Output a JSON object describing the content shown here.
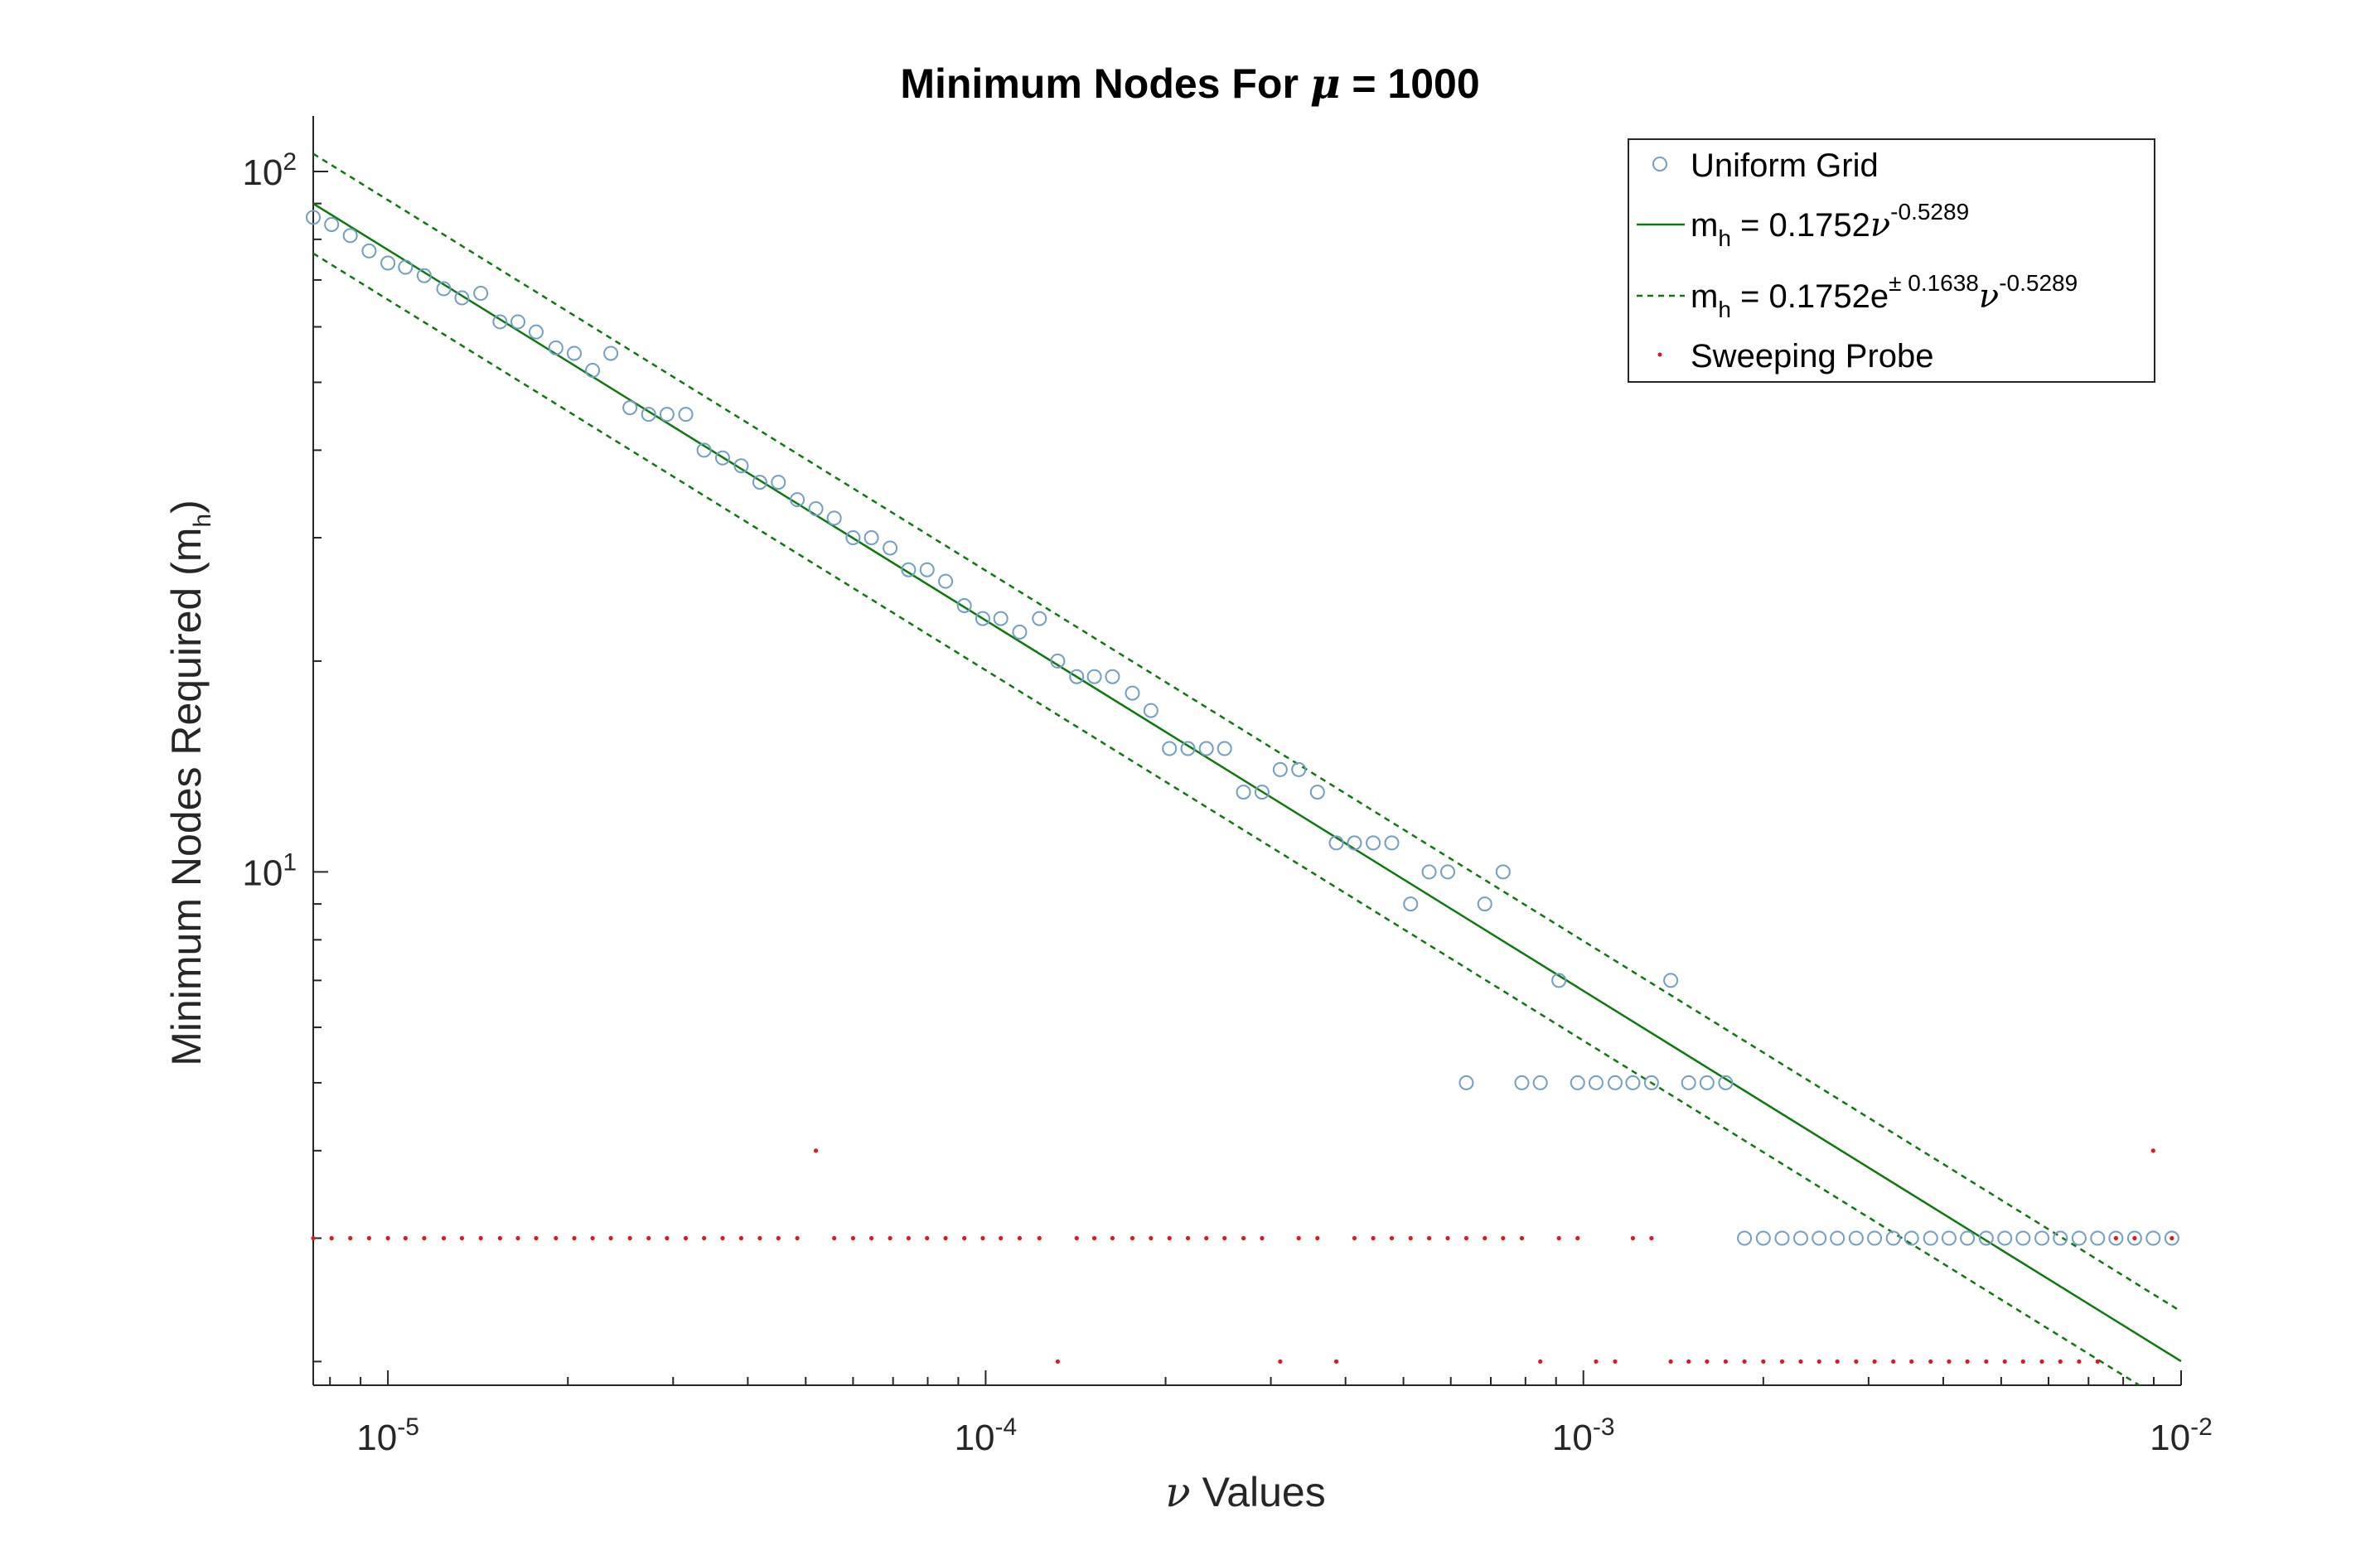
{
  "chart_data": {
    "type": "scatter",
    "title": {
      "prefix": "Minimum Nodes For ",
      "symbol": "μ",
      "suffix": " = 1000"
    },
    "xlabel": {
      "symbol": "ν",
      "text": " Values"
    },
    "ylabel": {
      "text": "Minimum Nodes Required (m",
      "sub": "h",
      "close": ")"
    },
    "x_scale": "log",
    "y_scale": "log",
    "xlim": [
      7.5e-06,
      0.01
    ],
    "ylim": [
      1.85,
      120
    ],
    "grid": false,
    "x_ticks": [
      {
        "value": 1e-05,
        "base": "10",
        "exp": "-5"
      },
      {
        "value": 0.0001,
        "base": "10",
        "exp": "-4"
      },
      {
        "value": 0.001,
        "base": "10",
        "exp": "-3"
      },
      {
        "value": 0.01,
        "base": "10",
        "exp": "-2"
      }
    ],
    "y_ticks": [
      {
        "value": 10,
        "base": "10",
        "exp": "1"
      },
      {
        "value": 100,
        "base": "10",
        "exp": "2"
      }
    ],
    "legend": {
      "position": "top-right",
      "entries": [
        {
          "text": "Uniform Grid"
        },
        {
          "pre": "m",
          "sub": "h",
          "mid": " = 0.1752",
          "sym": "ν",
          "sup": "-0.5289"
        },
        {
          "pre": "m",
          "sub": "h",
          "mid": " = 0.1752e",
          "sup1": "± 0.1638",
          "sym": "ν",
          "sup": "-0.5289"
        },
        {
          "text": "Sweeping Probe"
        }
      ]
    },
    "colors": {
      "uniform_grid": "#6f9fc5",
      "fit_line": "#0b7a0b",
      "band": "#0b7a0b",
      "sweeping_probe": "#e8141b",
      "axis": "#262626"
    },
    "fit": {
      "coefficient": 0.1752,
      "exponent": -0.5289,
      "band_log_offset": 0.1638
    },
    "series": [
      {
        "name": "Uniform Grid",
        "kind": "circle",
        "x": [
          7.5e-06,
          8.05e-06,
          8.65e-06,
          9.3e-06,
          1e-05,
          1.07e-05,
          1.15e-05,
          1.24e-05,
          1.33e-05,
          1.43e-05,
          1.54e-05,
          1.65e-05,
          1.77e-05,
          1.91e-05,
          2.05e-05,
          2.2e-05,
          2.36e-05,
          2.54e-05,
          2.73e-05,
          2.93e-05,
          3.15e-05,
          3.38e-05,
          3.63e-05,
          3.9e-05,
          4.19e-05,
          4.5e-05,
          4.84e-05,
          5.2e-05,
          5.58e-05,
          6e-05,
          6.44e-05,
          6.92e-05,
          7.43e-05,
          7.98e-05,
          8.57e-05,
          9.21e-05,
          9.89e-05,
          0.000106,
          0.000114,
          0.000123,
          0.000132,
          0.000142,
          0.000152,
          0.000163,
          0.000176,
          0.000189,
          0.000203,
          0.000218,
          0.000234,
          0.000251,
          0.00027,
          0.00029,
          0.000311,
          0.000334,
          0.000359,
          0.000386,
          0.000414,
          0.000445,
          0.000478,
          0.000514,
          0.000552,
          0.000593,
          0.000637,
          0.000684,
          0.000734,
          0.000789,
          0.000847,
          0.00091,
          0.000978,
          0.00105,
          0.00113,
          0.00121,
          0.0013,
          0.0014,
          0.0015,
          0.00161,
          0.00173,
          0.00186,
          0.002,
          0.00215,
          0.00231,
          0.00248,
          0.00266,
          0.00286,
          0.00307,
          0.0033,
          0.00354,
          0.00381,
          0.00409,
          0.00439,
          0.00472,
          0.00507,
          0.00544,
          0.00585,
          0.00628,
          0.00675,
          0.00725,
          0.00778,
          0.00836,
          0.00898,
          0.00965
        ],
        "y": [
          86,
          84,
          81,
          77,
          74,
          73,
          71,
          68,
          66,
          67,
          61,
          61,
          59,
          56,
          55,
          52,
          55,
          46,
          45,
          45,
          45,
          40,
          39,
          38,
          36,
          36,
          34,
          33,
          32,
          30,
          30,
          29,
          27,
          27,
          26,
          24,
          23,
          23,
          22,
          23,
          20,
          19,
          19,
          19,
          18,
          17,
          15,
          15,
          15,
          15,
          13,
          13,
          14,
          14,
          13,
          11,
          11,
          11,
          11,
          9,
          10,
          10,
          5,
          9,
          10,
          5,
          5,
          7,
          5,
          5,
          5,
          5,
          5,
          7,
          5,
          5,
          5,
          3,
          3,
          3,
          3,
          3,
          3,
          3,
          3,
          3,
          3,
          3,
          3,
          3,
          3,
          3,
          3,
          3,
          3,
          3,
          3,
          3,
          3,
          3,
          3
        ]
      },
      {
        "name": "Sweeping Probe",
        "kind": "dot",
        "x": [
          7.5e-06,
          8.05e-06,
          8.65e-06,
          9.3e-06,
          1e-05,
          1.07e-05,
          1.15e-05,
          1.24e-05,
          1.33e-05,
          1.43e-05,
          1.54e-05,
          1.65e-05,
          1.77e-05,
          1.91e-05,
          2.05e-05,
          2.2e-05,
          2.36e-05,
          2.54e-05,
          2.73e-05,
          2.93e-05,
          3.15e-05,
          3.38e-05,
          3.63e-05,
          3.9e-05,
          4.19e-05,
          4.5e-05,
          4.84e-05,
          5.2e-05,
          5.58e-05,
          6e-05,
          6.44e-05,
          6.92e-05,
          7.43e-05,
          7.98e-05,
          8.57e-05,
          9.21e-05,
          9.89e-05,
          0.000106,
          0.000114,
          0.000123,
          0.000132,
          0.000142,
          0.000152,
          0.000163,
          0.000176,
          0.000189,
          0.000203,
          0.000218,
          0.000234,
          0.000251,
          0.00027,
          0.00029,
          0.000311,
          0.000334,
          0.000359,
          0.000386,
          0.000414,
          0.000445,
          0.000478,
          0.000514,
          0.000552,
          0.000593,
          0.000637,
          0.000684,
          0.000734,
          0.000789,
          0.000847,
          0.00091,
          0.000978,
          0.00105,
          0.00113,
          0.00121,
          0.0013,
          0.0014,
          0.0015,
          0.00161,
          0.00173,
          0.00186,
          0.002,
          0.00215,
          0.00231,
          0.00248,
          0.00266,
          0.00286,
          0.00307,
          0.0033,
          0.00354,
          0.00381,
          0.00409,
          0.00439,
          0.00472,
          0.00507,
          0.00544,
          0.00585,
          0.00628,
          0.00675,
          0.00725,
          0.00778,
          0.00836,
          0.00898,
          0.00965
        ],
        "y": [
          3,
          3,
          3,
          3,
          3,
          3,
          3,
          3,
          3,
          3,
          3,
          3,
          3,
          3,
          3,
          3,
          3,
          3,
          3,
          3,
          3,
          3,
          3,
          3,
          3,
          3,
          3,
          4,
          3,
          3,
          3,
          3,
          3,
          3,
          3,
          3,
          3,
          3,
          3,
          3,
          2,
          3,
          3,
          3,
          3,
          3,
          3,
          3,
          3,
          3,
          3,
          3,
          2,
          3,
          3,
          2,
          3,
          3,
          3,
          3,
          3,
          3,
          3,
          3,
          3,
          3,
          2,
          3,
          3,
          2,
          2,
          3,
          3,
          2,
          2,
          2,
          2,
          2,
          2,
          2,
          2,
          2,
          2,
          2,
          2,
          2,
          2,
          2,
          2,
          2,
          2,
          2,
          2,
          2,
          2,
          2,
          2,
          3,
          3,
          4,
          3
        ]
      }
    ]
  }
}
